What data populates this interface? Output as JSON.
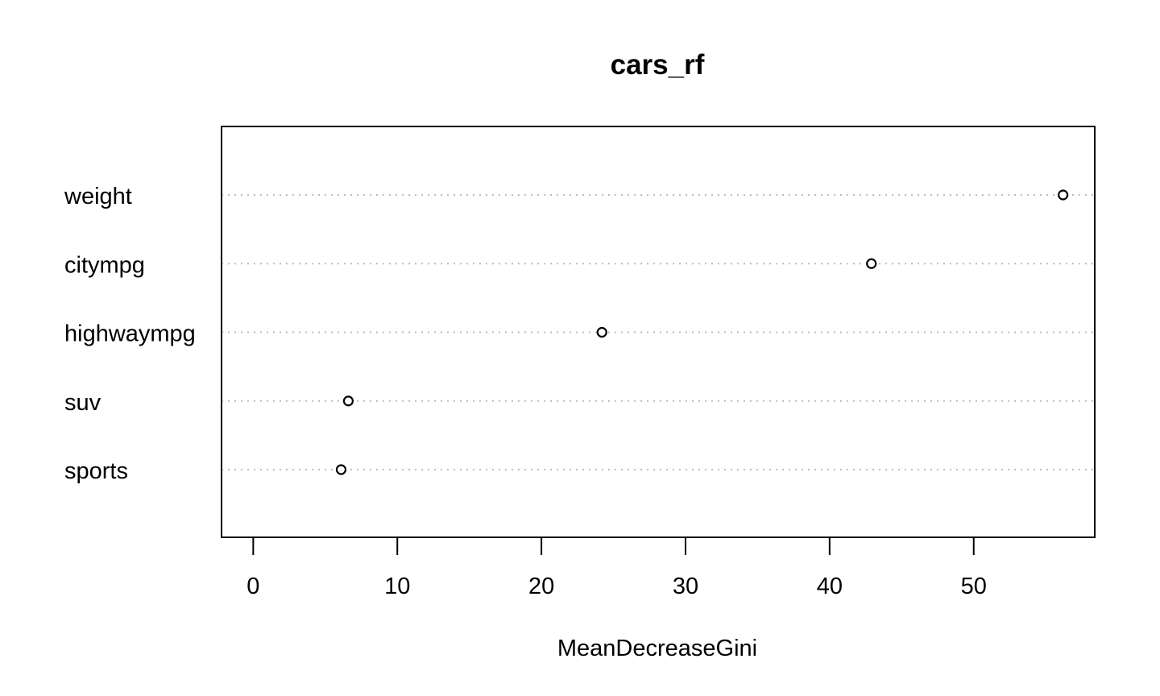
{
  "chart_data": {
    "type": "scatter",
    "title": "cars_rf",
    "xlabel": "MeanDecreaseGini",
    "ylabel": "",
    "categories": [
      "weight",
      "citympg",
      "highwaympg",
      "suv",
      "sports"
    ],
    "values": [
      56.2,
      42.9,
      24.2,
      6.6,
      6.1
    ],
    "xticks": [
      0,
      10,
      20,
      30,
      40,
      50
    ],
    "xlim": [
      -2.2,
      58.4
    ],
    "grid": "horizontal dotted"
  }
}
